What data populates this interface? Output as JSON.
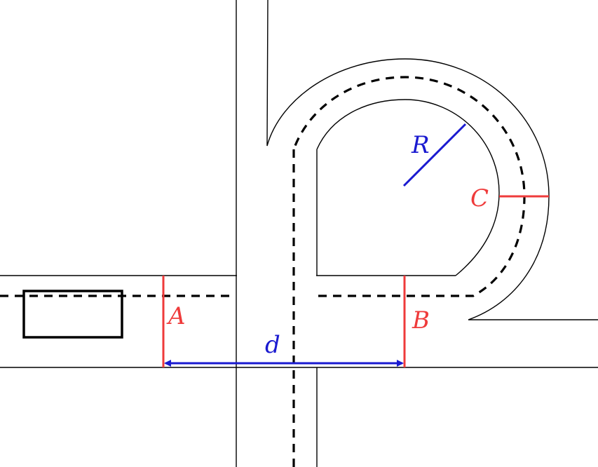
{
  "labels": {
    "gate_a": "A",
    "gate_b": "B",
    "gate_c": "C",
    "radius": "R",
    "distance": "d"
  },
  "colors": {
    "gate": "#ef3b3b",
    "dimension": "#1a1ad0",
    "road": "#000000"
  }
}
